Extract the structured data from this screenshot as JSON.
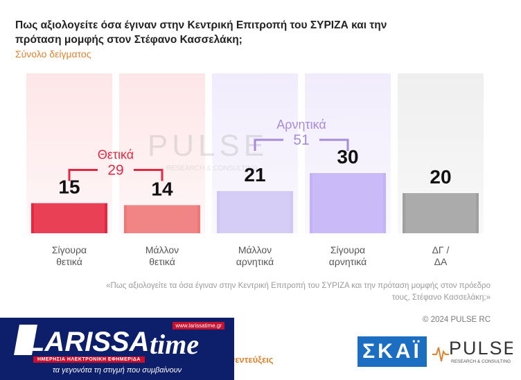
{
  "chart_data": {
    "type": "bar",
    "title": "Πως αξιολογείτε όσα έγιναν στην Κεντρική Επιτροπή του ΣΥΡΙΖΑ και την πρόταση μομφής στον Στέφανο Κασσελάκη;",
    "subtitle": "Σύνολο δείγματος",
    "categories": [
      "Σίγουρα θετικά",
      "Μάλλον θετικά",
      "Μάλλον αρνητικά",
      "Σίγουρα αρνητικά",
      "ΔΓ / ΔΑ"
    ],
    "values": [
      15,
      14,
      21,
      30,
      20
    ],
    "colors": [
      "#e8263f",
      "#f07575",
      "#d1c6f6",
      "#c3b2f8",
      "#a0a0a0"
    ],
    "ylim": [
      0,
      100
    ],
    "groups": [
      {
        "label": "Θετικά",
        "value": 29,
        "color": "#e8263f",
        "from": 0,
        "to": 1
      },
      {
        "label": "Αρνητικά",
        "value": 51,
        "color": "#a78bdb",
        "from": 2,
        "to": 3
      }
    ]
  },
  "footnote": "«Πως αξιολογείτε τα όσα έγιναν στην Κεντρική Επιτροπή του ΣΥΡΙΖΑ και την πρόταση μομφής στον πρόεδρο τους, Στέφανο Κασσελάκη;»",
  "copyright": "© 2024 PULSE RC",
  "partial_text": "νεντεύξεις",
  "watermark": {
    "word": "PULSE",
    "sub": "RESEARCH & CONSULTING"
  },
  "logos": {
    "larissa": {
      "text": "LARISSA",
      "time": "time",
      "site": "www.larissatime.gr",
      "tag": "ΗΜΕΡΗΣΙΑ ΗΛΕΚΤΡΟΝΙΚΗ ΕΦΗΜΕΡΙΔΑ",
      "slogan": "τα γεγονότα τη στιγμή που συμβαίνουν"
    },
    "skai": {
      "text": "ΣΚΑΪ"
    },
    "pulse": {
      "word": "PULSE",
      "sub": "RESEARCH & CONSULTING"
    }
  }
}
